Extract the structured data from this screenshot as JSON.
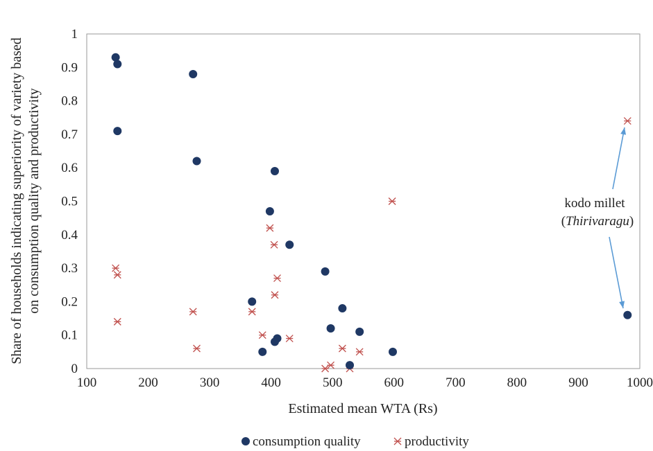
{
  "chart_data": {
    "type": "scatter",
    "title": "",
    "xlabel": "Estimated mean WTA (Rs)",
    "ylabel_lines": [
      "Share of households indicating superiority of variety based",
      "on consumption quality and productivity"
    ],
    "xlim": [
      100,
      1000
    ],
    "ylim": [
      0,
      1
    ],
    "x_ticks": [
      "100",
      "200",
      "300",
      "400",
      "500",
      "600",
      "700",
      "800",
      "900",
      "1000"
    ],
    "y_ticks": [
      "0",
      "0.1",
      "0.2",
      "0.3",
      "0.4",
      "0.5",
      "0.6",
      "0.7",
      "0.8",
      "0.9",
      "1"
    ],
    "grid": false,
    "legend_position": "bottom",
    "series": [
      {
        "name": "consumption quality",
        "color": "#1f3864",
        "marker": "circle",
        "points": [
          [
            147,
            0.93
          ],
          [
            150,
            0.91
          ],
          [
            150,
            0.71
          ],
          [
            273,
            0.88
          ],
          [
            279,
            0.62
          ],
          [
            406,
            0.59
          ],
          [
            398,
            0.47
          ],
          [
            430,
            0.37
          ],
          [
            488,
            0.29
          ],
          [
            369,
            0.2
          ],
          [
            516,
            0.18
          ],
          [
            497,
            0.12
          ],
          [
            544,
            0.11
          ],
          [
            410,
            0.09
          ],
          [
            406,
            0.08
          ],
          [
            386,
            0.05
          ],
          [
            598,
            0.05
          ],
          [
            528,
            0.01
          ],
          [
            980,
            0.16
          ]
        ]
      },
      {
        "name": "productivity",
        "color": "#c0504d",
        "marker": "asterisk",
        "points": [
          [
            147,
            0.3
          ],
          [
            150,
            0.28
          ],
          [
            150,
            0.14
          ],
          [
            273,
            0.17
          ],
          [
            279,
            0.06
          ],
          [
            597,
            0.5
          ],
          [
            398,
            0.42
          ],
          [
            405,
            0.37
          ],
          [
            410,
            0.27
          ],
          [
            406,
            0.22
          ],
          [
            369,
            0.17
          ],
          [
            386,
            0.1
          ],
          [
            430,
            0.09
          ],
          [
            516,
            0.06
          ],
          [
            544,
            0.05
          ],
          [
            497,
            0.01
          ],
          [
            488,
            0.0
          ],
          [
            528,
            0.0
          ],
          [
            980,
            0.74
          ]
        ]
      }
    ],
    "annotation": {
      "text_line1": "kodo millet",
      "text_line2_open": "(",
      "text_line2_italic": "Thirivaragu",
      "text_line2_close": ")",
      "arrow_color": "#5b9bd5"
    }
  }
}
